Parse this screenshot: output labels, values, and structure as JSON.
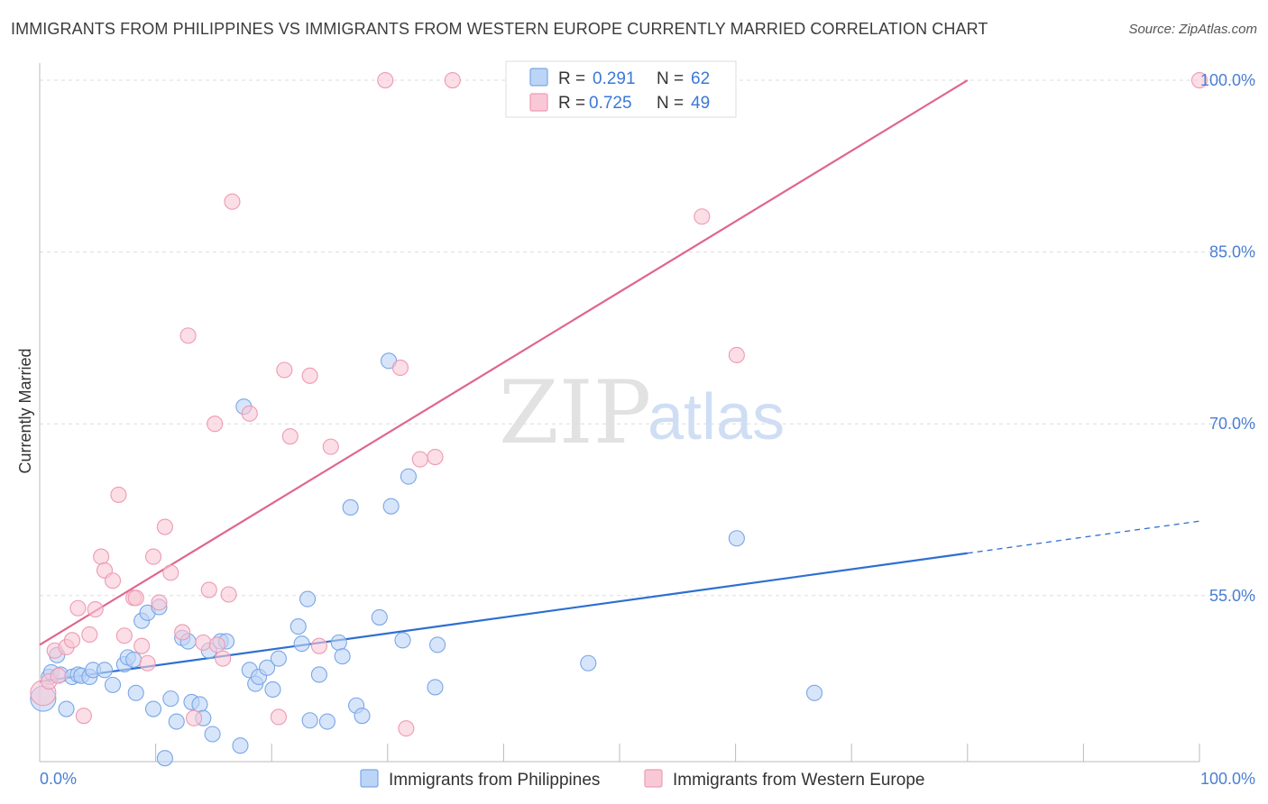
{
  "title": "IMMIGRANTS FROM PHILIPPINES VS IMMIGRANTS FROM WESTERN EUROPE CURRENTLY MARRIED CORRELATION CHART",
  "source": "Source: ZipAtlas.com",
  "watermark": {
    "zip": "ZIP",
    "atlas": "atlas"
  },
  "colors": {
    "blue_fill": "#bcd4f6",
    "blue_stroke": "#7aa6e6",
    "blue_line": "#2e6fd1",
    "pink_fill": "#f9c8d6",
    "pink_stroke": "#ee9ab4",
    "pink_line": "#e0668e",
    "grid": "#dddddd",
    "tick_text": "#4a7fd4"
  },
  "legend": {
    "rows": [
      {
        "r_label": "R =",
        "r_value": "0.291",
        "n_label": "N =",
        "n_value": "62",
        "color": "blue"
      },
      {
        "r_label": "R =",
        "r_value": "0.725",
        "n_label": "N =",
        "n_value": "49",
        "color": "pink"
      }
    ]
  },
  "bottom_legend": [
    {
      "label": "Immigrants from Philippines",
      "color": "blue"
    },
    {
      "label": "Immigrants from Western Europe",
      "color": "pink"
    }
  ],
  "chart_data": {
    "type": "scatter",
    "title": "IMMIGRANTS FROM PHILIPPINES VS IMMIGRANTS FROM WESTERN EUROPE CURRENTLY MARRIED CORRELATION CHART",
    "xlabel": "",
    "ylabel": "Currently Married",
    "xlim": [
      0,
      100
    ],
    "ylim": [
      40.5,
      101.5
    ],
    "x_tick_labels": [
      "0.0%",
      "100.0%"
    ],
    "y_ticks": [
      55,
      70,
      85,
      100
    ],
    "y_tick_labels": [
      "55.0%",
      "70.0%",
      "85.0%",
      "100.0%"
    ],
    "grid": true,
    "legend_position": "top-center",
    "series": [
      {
        "name": "Immigrants from Philippines",
        "color": "blue",
        "r": 0.291,
        "n": 62,
        "trend": {
          "x": [
            0,
            80
          ],
          "y": [
            47.5,
            58.7
          ]
        },
        "trend_dashed": {
          "x": [
            80,
            100
          ],
          "y": [
            58.7,
            61.5
          ]
        },
        "points": [
          [
            0.3,
            46.0
          ],
          [
            0.8,
            47.9
          ],
          [
            1.0,
            48.3
          ],
          [
            1.5,
            49.8
          ],
          [
            1.8,
            48.1
          ],
          [
            2.3,
            45.1
          ],
          [
            2.8,
            47.9
          ],
          [
            3.3,
            48.1
          ],
          [
            3.6,
            48.0
          ],
          [
            4.3,
            47.9
          ],
          [
            4.6,
            48.5
          ],
          [
            5.6,
            48.5
          ],
          [
            6.3,
            47.2
          ],
          [
            7.3,
            49.0
          ],
          [
            7.6,
            49.6
          ],
          [
            8.1,
            49.4
          ],
          [
            8.3,
            46.5
          ],
          [
            8.8,
            52.8
          ],
          [
            9.3,
            53.5
          ],
          [
            9.8,
            45.1
          ],
          [
            10.3,
            54.0
          ],
          [
            10.8,
            40.8
          ],
          [
            11.3,
            46.0
          ],
          [
            11.8,
            44.0
          ],
          [
            12.3,
            51.3
          ],
          [
            12.8,
            51.0
          ],
          [
            13.1,
            45.7
          ],
          [
            13.8,
            45.5
          ],
          [
            14.1,
            44.3
          ],
          [
            14.6,
            50.2
          ],
          [
            14.9,
            42.9
          ],
          [
            15.6,
            51.0
          ],
          [
            16.1,
            51.0
          ],
          [
            17.3,
            41.9
          ],
          [
            17.6,
            71.5
          ],
          [
            18.1,
            48.5
          ],
          [
            18.6,
            47.3
          ],
          [
            18.9,
            47.9
          ],
          [
            19.6,
            48.7
          ],
          [
            20.1,
            46.8
          ],
          [
            20.6,
            49.5
          ],
          [
            22.3,
            52.3
          ],
          [
            22.6,
            50.8
          ],
          [
            23.1,
            54.7
          ],
          [
            23.3,
            44.1
          ],
          [
            24.1,
            48.1
          ],
          [
            24.8,
            44.0
          ],
          [
            25.8,
            50.9
          ],
          [
            26.1,
            49.7
          ],
          [
            26.8,
            62.7
          ],
          [
            27.3,
            45.4
          ],
          [
            27.8,
            44.5
          ],
          [
            29.3,
            53.1
          ],
          [
            30.1,
            75.5
          ],
          [
            30.3,
            62.8
          ],
          [
            31.3,
            51.1
          ],
          [
            31.8,
            65.4
          ],
          [
            34.1,
            47.0
          ],
          [
            34.3,
            50.7
          ],
          [
            47.3,
            49.1
          ],
          [
            60.1,
            60.0
          ],
          [
            66.8,
            46.5
          ]
        ]
      },
      {
        "name": "Immigrants from Western Europe",
        "color": "pink",
        "r": 0.725,
        "n": 49,
        "trend": {
          "x": [
            0,
            80
          ],
          "y": [
            50.7,
            100.0
          ]
        },
        "points": [
          [
            0.3,
            46.5
          ],
          [
            0.8,
            47.5
          ],
          [
            1.3,
            50.2
          ],
          [
            1.6,
            48.0
          ],
          [
            2.3,
            50.5
          ],
          [
            2.8,
            51.1
          ],
          [
            3.3,
            53.9
          ],
          [
            3.8,
            44.5
          ],
          [
            4.3,
            51.6
          ],
          [
            4.8,
            53.8
          ],
          [
            5.3,
            58.4
          ],
          [
            5.6,
            57.2
          ],
          [
            6.3,
            56.3
          ],
          [
            6.8,
            63.8
          ],
          [
            7.3,
            51.5
          ],
          [
            8.1,
            54.8
          ],
          [
            8.3,
            54.8
          ],
          [
            8.8,
            50.6
          ],
          [
            9.3,
            49.1
          ],
          [
            9.8,
            58.4
          ],
          [
            10.3,
            54.4
          ],
          [
            10.8,
            61.0
          ],
          [
            11.3,
            57.0
          ],
          [
            12.3,
            51.8
          ],
          [
            12.8,
            77.7
          ],
          [
            13.3,
            44.3
          ],
          [
            14.1,
            50.9
          ],
          [
            14.6,
            55.5
          ],
          [
            15.1,
            70.0
          ],
          [
            15.3,
            50.7
          ],
          [
            15.8,
            49.5
          ],
          [
            16.6,
            89.4
          ],
          [
            16.3,
            55.1
          ],
          [
            18.1,
            70.9
          ],
          [
            20.6,
            44.4
          ],
          [
            21.1,
            74.7
          ],
          [
            21.6,
            68.9
          ],
          [
            23.3,
            74.2
          ],
          [
            24.1,
            50.6
          ],
          [
            25.1,
            68.0
          ],
          [
            29.8,
            100.0
          ],
          [
            31.1,
            74.9
          ],
          [
            31.6,
            43.4
          ],
          [
            32.8,
            66.9
          ],
          [
            34.1,
            67.1
          ],
          [
            35.6,
            100.0
          ],
          [
            57.1,
            88.1
          ],
          [
            60.1,
            76.0
          ],
          [
            100.0,
            100.0
          ]
        ]
      }
    ]
  }
}
